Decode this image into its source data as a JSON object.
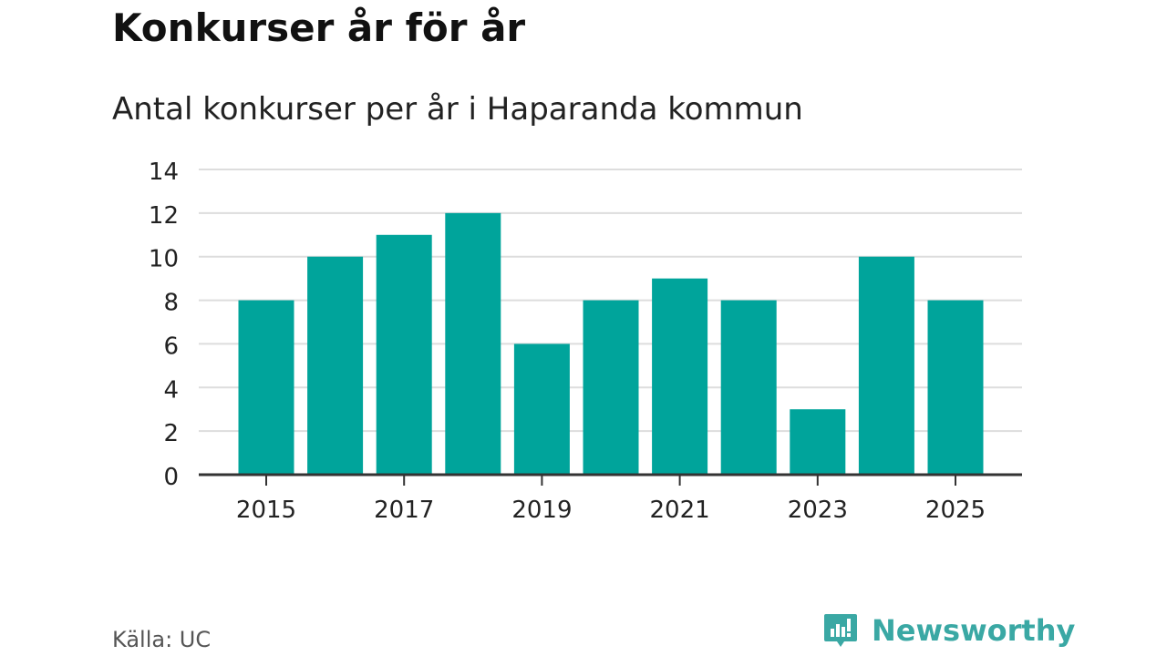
{
  "title": "Konkurser år för år",
  "subtitle": "Antal konkurser per år i Haparanda kommun",
  "source": "Källa: UC",
  "brand": {
    "name": "Newsworthy",
    "logo_icon": "newsworthy-logo-icon",
    "color": "#3aa8a4"
  },
  "colors": {
    "bar": "#00a49b",
    "grid": "#dddddd",
    "axis": "#333333"
  },
  "chart_data": {
    "type": "bar",
    "categories": [
      "2015",
      "2016",
      "2017",
      "2018",
      "2019",
      "2020",
      "2021",
      "2022",
      "2023",
      "2024",
      "2025"
    ],
    "values": [
      8,
      10,
      11,
      12,
      6,
      8,
      9,
      8,
      3,
      10,
      8
    ],
    "xticks": [
      "2015",
      "2017",
      "2019",
      "2021",
      "2023",
      "2025"
    ],
    "yticks": [
      0,
      2,
      4,
      6,
      8,
      10,
      12,
      14
    ],
    "ylim": [
      0,
      14
    ],
    "title": "Konkurser år för år",
    "subtitle": "Antal konkurser per år i Haparanda kommun",
    "grid": true,
    "legend": "none"
  }
}
